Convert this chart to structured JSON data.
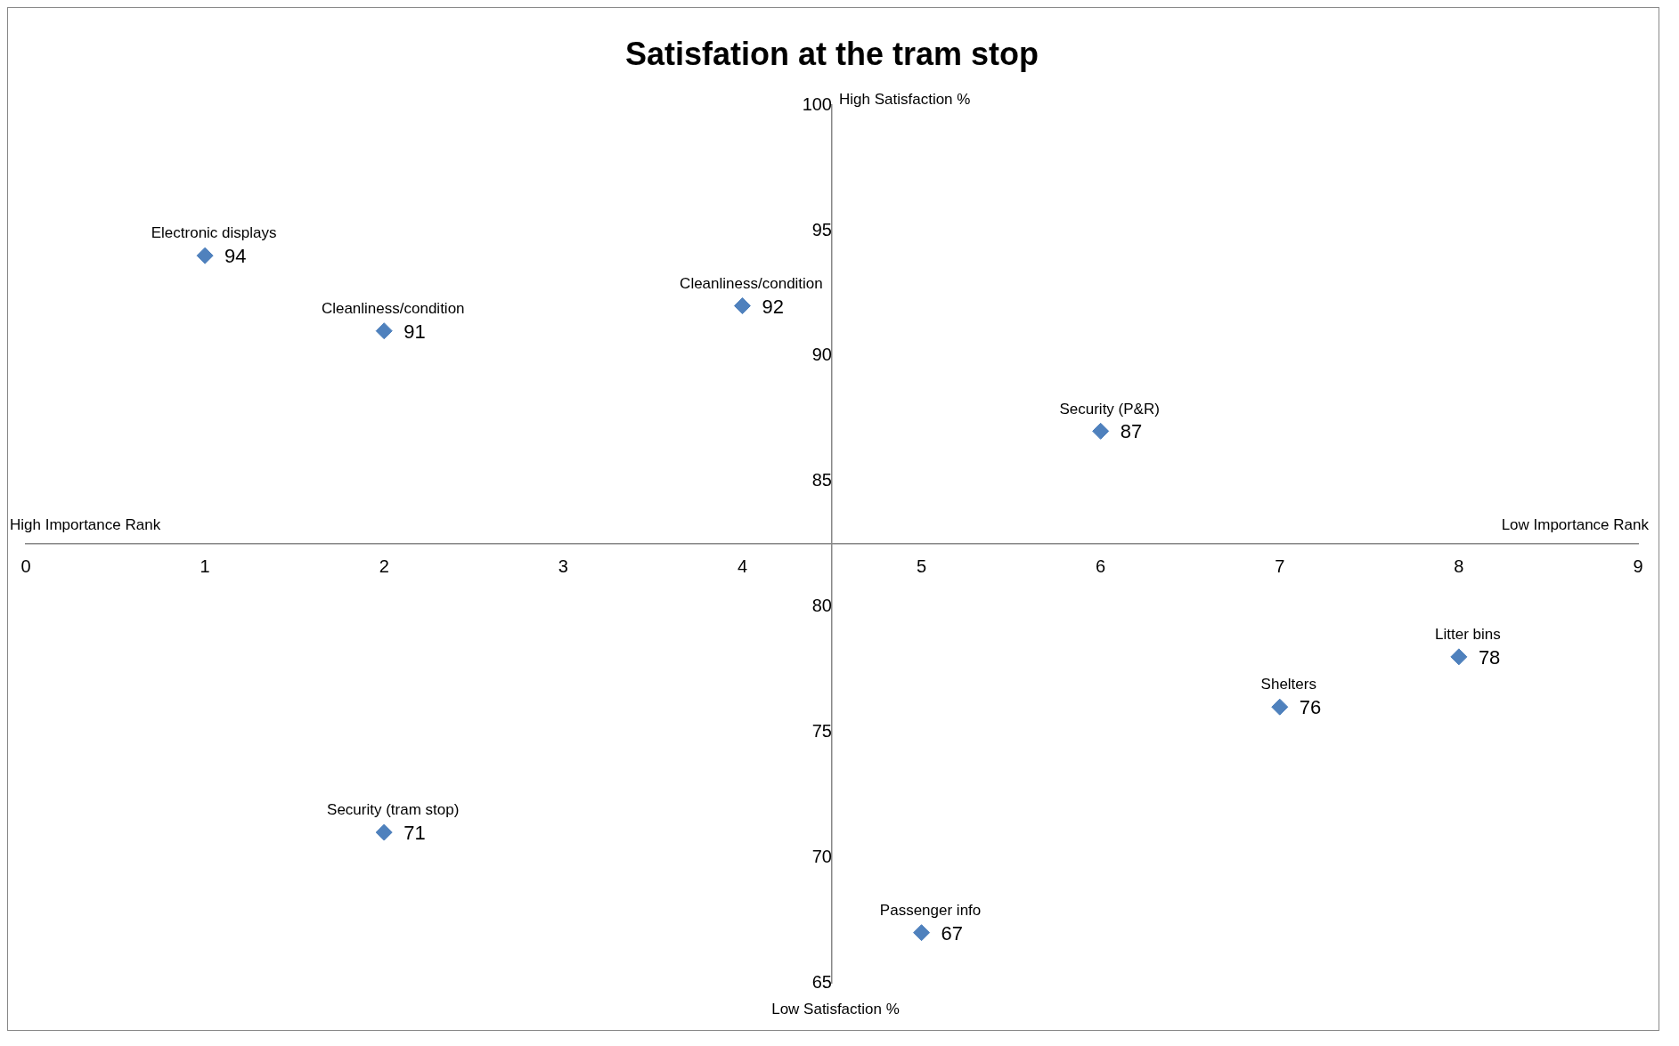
{
  "chart_data": {
    "type": "scatter",
    "title": "Satisfation at the tram stop",
    "x": [
      1,
      2,
      4,
      6,
      8,
      7,
      2,
      5
    ],
    "series": [
      {
        "color": "#4f81bd",
        "values": [
          94,
          91,
          92,
          87,
          78,
          76,
          71,
          67
        ]
      }
    ],
    "xlim": [
      0,
      9
    ],
    "xticks": [
      0,
      1,
      2,
      3,
      4,
      5,
      6,
      7,
      8,
      9
    ],
    "ylim": [
      65,
      100
    ],
    "yticks": [
      65,
      70,
      75,
      80,
      85,
      90,
      95,
      100
    ],
    "grid": false,
    "legend": false,
    "marker": "diamond",
    "data_labels": true,
    "annotations": [
      "High Satisfaction %",
      "Low Satisfaction %",
      "High Importance Rank",
      "Low Importance Rank",
      {
        "text": "Electronic displays",
        "x": 1,
        "y": 94
      },
      {
        "text": "Cleanliness/condition",
        "x": 2,
        "y": 91
      },
      {
        "text": "Cleanliness/condition",
        "x": 4,
        "y": 92
      },
      {
        "text": "Security (P&R)",
        "x": 6,
        "y": 87
      },
      {
        "text": "Litter bins",
        "x": 8,
        "y": 78
      },
      {
        "text": "Shelters",
        "x": 7,
        "y": 76
      },
      {
        "text": "Security (tram stop)",
        "x": 2,
        "y": 71
      },
      {
        "text": "Passenger info",
        "x": 5,
        "y": 67
      }
    ]
  }
}
